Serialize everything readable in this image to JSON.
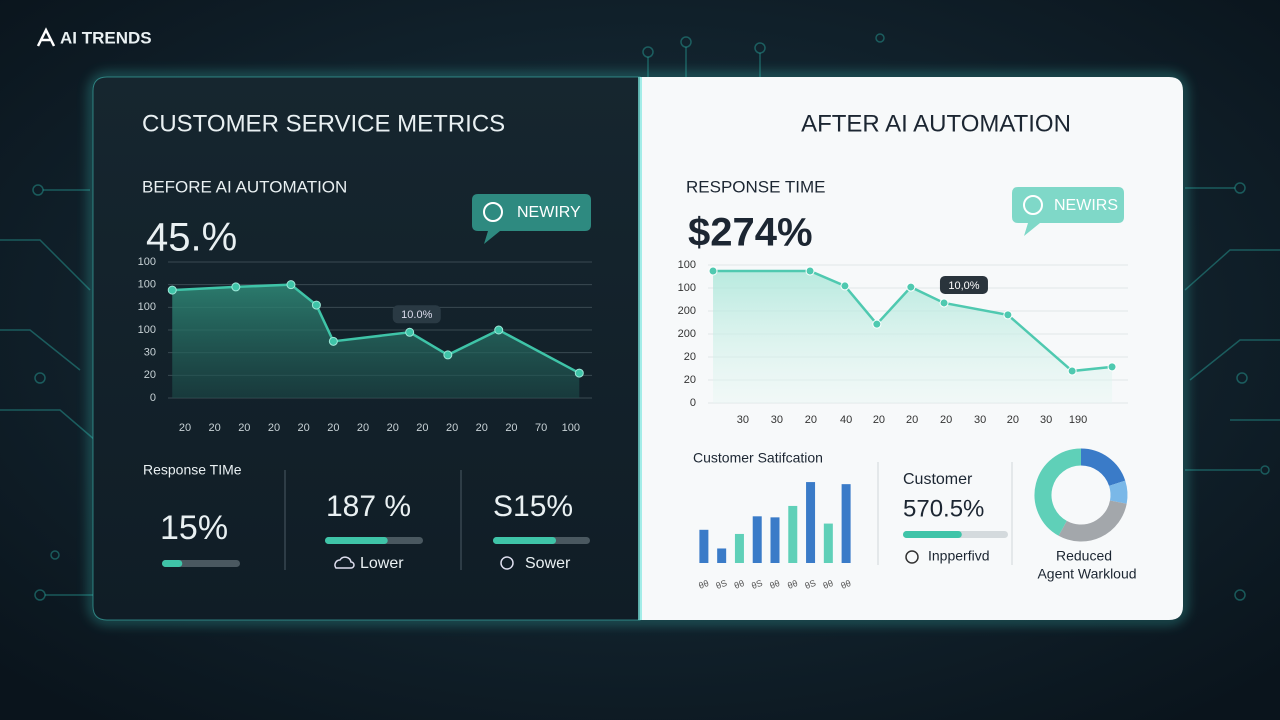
{
  "brand": "AI TRENDS",
  "left_panel": {
    "title": "CUSTOMER SERVICE METRICS",
    "label": "BEFORE AI AUTOMATION",
    "headline": "45.%",
    "badge": "NEWIRY",
    "metrics": [
      {
        "label": "Response TIMe",
        "value": "15%",
        "progress": 26
      },
      {
        "value": "187 %",
        "progress": 64,
        "note": "Lower"
      },
      {
        "value": "S15%",
        "progress": 65,
        "note": "Sower"
      }
    ]
  },
  "right_panel": {
    "title": "AFTER AI AUTOMATION",
    "label": "RESPONSE TIME",
    "headline": "$274%",
    "badge": "NEWIRS",
    "metric": {
      "label": "Customer",
      "value": "570.5%",
      "progress": 56,
      "note": "Inpperfivd"
    }
  },
  "chart_data": [
    {
      "type": "line",
      "annotation": "10.0%",
      "grid": true,
      "x": [
        1,
        16,
        29,
        35,
        39,
        57,
        66,
        78,
        97
      ],
      "xlim": [
        0,
        100
      ],
      "xticks": [
        {
          "value": 4,
          "label": "20"
        },
        {
          "value": 11,
          "label": "20"
        },
        {
          "value": 18,
          "label": "20"
        },
        {
          "value": 25,
          "label": "20"
        },
        {
          "value": 32,
          "label": "20"
        },
        {
          "value": 39,
          "label": "20"
        },
        {
          "value": 46,
          "label": "20"
        },
        {
          "value": 53,
          "label": "20"
        },
        {
          "value": 60,
          "label": "20"
        },
        {
          "value": 67,
          "label": "20"
        },
        {
          "value": 74,
          "label": "20"
        },
        {
          "value": 81,
          "label": "20"
        },
        {
          "value": 88,
          "label": "70"
        },
        {
          "value": 95,
          "label": "100"
        }
      ],
      "ylim": [
        0,
        6
      ],
      "yticks": [
        {
          "value": 0,
          "label": "0"
        },
        {
          "value": 1,
          "label": "20"
        },
        {
          "value": 2,
          "label": "30"
        },
        {
          "value": 3,
          "label": "100"
        },
        {
          "value": 4,
          "label": "100"
        },
        {
          "value": 5,
          "label": "100"
        },
        {
          "value": 6,
          "label": "100"
        }
      ],
      "series": [
        {
          "color": "#3fc4a8",
          "values": [
            4.76,
            4.9,
            5.0,
            4.1,
            2.5,
            2.9,
            1.9,
            3.0,
            1.1
          ]
        }
      ]
    },
    {
      "type": "line",
      "annotation": "10,0%",
      "grid": true,
      "x": [
        1.2,
        24.3,
        32.6,
        40.2,
        48.3,
        56.2,
        71.4,
        86.7,
        96.2
      ],
      "xlim": [
        0,
        100
      ],
      "xticks": [
        {
          "value": 8.3,
          "label": "30"
        },
        {
          "value": 16.4,
          "label": "30"
        },
        {
          "value": 24.5,
          "label": "20"
        },
        {
          "value": 32.9,
          "label": "40"
        },
        {
          "value": 40.7,
          "label": "20"
        },
        {
          "value": 48.6,
          "label": "20"
        },
        {
          "value": 56.7,
          "label": "20"
        },
        {
          "value": 64.8,
          "label": "30"
        },
        {
          "value": 72.6,
          "label": "20"
        },
        {
          "value": 80.5,
          "label": "30"
        },
        {
          "value": 88.1,
          "label": "190"
        }
      ],
      "ylim": [
        0,
        6
      ],
      "yticks": [
        {
          "value": 0,
          "label": "0"
        },
        {
          "value": 1,
          "label": "20"
        },
        {
          "value": 2,
          "label": "20"
        },
        {
          "value": 3,
          "label": "200"
        },
        {
          "value": 4,
          "label": "200"
        },
        {
          "value": 5,
          "label": "100"
        },
        {
          "value": 6,
          "label": "100"
        }
      ],
      "series": [
        {
          "color": "#4fc9b0",
          "values": [
            5.74,
            5.74,
            5.09,
            3.43,
            5.04,
            4.35,
            3.83,
            1.39,
            1.57
          ]
        }
      ]
    },
    {
      "type": "bar",
      "title": "Customer Satifcation",
      "ylim": [
        0,
        80
      ],
      "categories": [
        "θθ",
        "θS",
        "θθ",
        "θS",
        "θθ",
        "θθ",
        "θS",
        "θθ",
        "θθ"
      ],
      "values": [
        32,
        14,
        28,
        45,
        44,
        55,
        78,
        38,
        76
      ],
      "colors": [
        "#3a7bc8",
        "#3a7bc8",
        "#5fd0b8",
        "#3a7bc8",
        "#3a7bc8",
        "#5fd0b8",
        "#3a7bc8",
        "#5fd0b8",
        "#3a7bc8"
      ]
    },
    {
      "type": "pie",
      "donut": true,
      "label_lines": [
        "Reduced",
        "Agent Warkloud"
      ],
      "values": [
        20,
        8,
        30,
        42
      ],
      "colors": [
        "#3a7bc8",
        "#7ab8e8",
        "#a3a7ab",
        "#5fd0b8"
      ]
    }
  ]
}
